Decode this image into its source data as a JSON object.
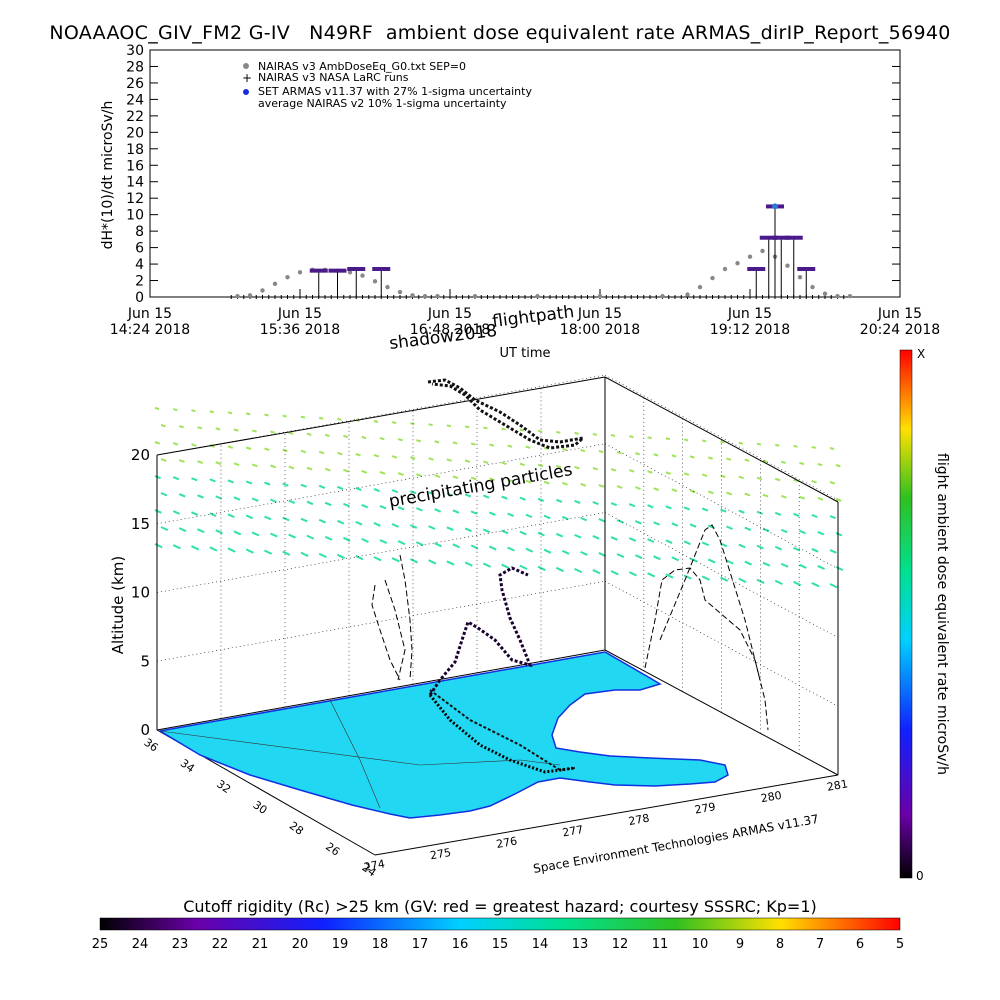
{
  "title": "NOAAAOC_GIV_FM2 G-IV   N49RF  ambient dose equivalent rate ARMAS_dirIP_Report_56940",
  "chart_data": [
    {
      "type": "scatter",
      "ylabel": "dH*(10)/dt microSv/h",
      "xlabel": "UT time",
      "ylim": [
        0,
        30
      ],
      "yticks": [
        0,
        2,
        4,
        6,
        8,
        10,
        12,
        14,
        16,
        18,
        20,
        22,
        24,
        26,
        28,
        30
      ],
      "xticks": [
        {
          "line1": "Jun 15",
          "line2": "14:24 2018"
        },
        {
          "line1": "Jun 15",
          "line2": "15:36 2018"
        },
        {
          "line1": "Jun 15",
          "line2": "16:48 2018"
        },
        {
          "line1": "Jun 15",
          "line2": "18:00 2018"
        },
        {
          "line1": "Jun 15",
          "line2": "19:12 2018"
        },
        {
          "line1": "Jun 15",
          "line2": "20:24 2018"
        }
      ],
      "xlim_hours": [
        14.4,
        20.4
      ],
      "legend": [
        {
          "label": "NAIRAS v3 AmbDoseEq_G0.txt SEP=0",
          "marker": "circle-gray"
        },
        {
          "label": "NAIRAS v3 NASA LaRC runs",
          "marker": "plus"
        },
        {
          "label": "SET ARMAS v11.37 with 27% 1-sigma uncertainty",
          "marker": "dot-blue"
        },
        {
          "label": "average NAIRAS v2 10% 1-sigma uncertainty",
          "marker": "none"
        }
      ],
      "legend_position": "top-left",
      "series": [
        {
          "name": "NAIRAS v3 AmbDoseEq_G0.txt SEP=0",
          "color": "#888888",
          "points": [
            [
              15.1,
              0.1
            ],
            [
              15.2,
              0.2
            ],
            [
              15.3,
              0.8
            ],
            [
              15.4,
              1.6
            ],
            [
              15.5,
              2.4
            ],
            [
              15.6,
              3.0
            ],
            [
              15.7,
              3.3
            ],
            [
              15.8,
              3.3
            ],
            [
              15.9,
              3.2
            ],
            [
              16.0,
              3.0
            ],
            [
              16.1,
              2.6
            ],
            [
              16.2,
              1.9
            ],
            [
              16.3,
              1.2
            ],
            [
              16.4,
              0.6
            ],
            [
              16.5,
              0.2
            ],
            [
              16.6,
              0.1
            ],
            [
              16.7,
              0.1
            ],
            [
              17.0,
              0.1
            ],
            [
              17.5,
              0.1
            ],
            [
              18.0,
              0.1
            ],
            [
              18.5,
              0.1
            ],
            [
              18.7,
              0.3
            ],
            [
              18.8,
              1.2
            ],
            [
              18.9,
              2.3
            ],
            [
              19.0,
              3.4
            ],
            [
              19.1,
              4.1
            ],
            [
              19.2,
              4.9
            ],
            [
              19.3,
              5.6
            ],
            [
              19.4,
              4.9
            ],
            [
              19.5,
              3.8
            ],
            [
              19.6,
              2.4
            ],
            [
              19.7,
              1.2
            ],
            [
              19.8,
              0.4
            ],
            [
              19.9,
              0.1
            ],
            [
              20.0,
              0.1
            ]
          ]
        },
        {
          "name": "SET ARMAS v11.37 with 27% 1-sigma uncertainty",
          "color": "#1a2bd9",
          "points": [
            [
              15.75,
              3.2
            ],
            [
              15.9,
              3.2
            ],
            [
              16.05,
              3.4
            ],
            [
              16.25,
              3.4
            ],
            [
              19.25,
              3.4
            ],
            [
              19.35,
              7.2
            ],
            [
              19.4,
              11.0
            ],
            [
              19.45,
              7.2
            ],
            [
              19.55,
              7.2
            ],
            [
              19.65,
              3.4
            ]
          ]
        }
      ]
    },
    {
      "type": "scatter",
      "title_labels": [
        "shadow2018",
        "flightpath"
      ],
      "annotation": "precipitating particles",
      "zlabel": "Altitude (km)",
      "zlim": [
        0,
        20
      ],
      "zticks": [
        0,
        5,
        10,
        15,
        20
      ],
      "x_ticks": [
        "274",
        "275",
        "276",
        "277",
        "278",
        "279",
        "280",
        "281"
      ],
      "y_ticks": [
        "24",
        "26",
        "28",
        "30",
        "32",
        "34",
        "36"
      ],
      "credit": "Space Environment Technologies ARMAS v11.37",
      "colorbar": {
        "label": "flight ambient dose equivalent rate microSv/h",
        "top": "X",
        "bottom": "0"
      }
    },
    {
      "type": "heatmap",
      "colorbar_title": "Cutoff rigidity (Rc) >25 km (GV: red = greatest hazard; courtesy SSSRC; Kp=1)",
      "ticks": [
        "25",
        "24",
        "23",
        "22",
        "21",
        "20",
        "19",
        "18",
        "17",
        "16",
        "15",
        "14",
        "13",
        "12",
        "11",
        "10",
        "9",
        "8",
        "7",
        "6",
        "5"
      ]
    }
  ],
  "colors": {
    "map_fill": "#21d7f2",
    "map_border": "#1030e0",
    "flight_dark": "#1a0030",
    "particles_high": "#9fe35a",
    "particles_low": "#2fe0a8"
  }
}
